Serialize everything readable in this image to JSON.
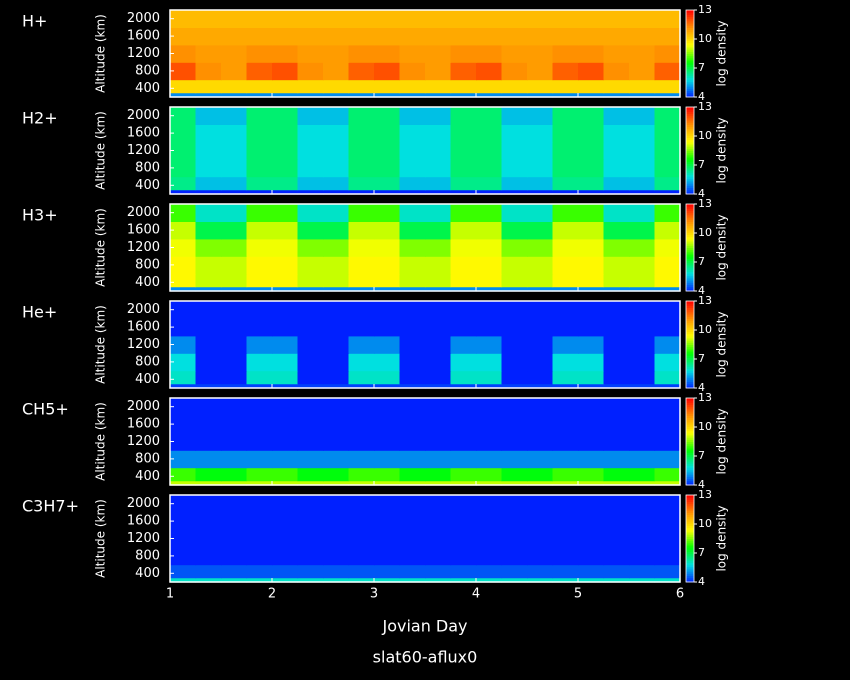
{
  "chart_data": {
    "type": "heatmap",
    "title": "slat60-aflux0",
    "x_label": "Jovian Day",
    "y_label": "Altitude (km)",
    "xlim": [
      1,
      6
    ],
    "xticks": [
      1,
      2,
      3,
      4,
      5,
      6
    ],
    "ylim": [
      200,
      2200
    ],
    "yticks": [
      400,
      800,
      1200,
      1600,
      2000
    ],
    "xbins": [
      1,
      1.25,
      1.5,
      1.75,
      2,
      2.25,
      2.5,
      2.75,
      3,
      3.25,
      3.5,
      3.75,
      4,
      4.25,
      4.5,
      4.75,
      5,
      5.25,
      5.5,
      5.75,
      6
    ],
    "ybins": [
      200,
      300,
      600,
      1000,
      1400,
      1800,
      2200
    ],
    "colorbar": {
      "label": "log density",
      "lim": [
        4,
        13
      ],
      "ticks": [
        4,
        7,
        10,
        13
      ],
      "colors": [
        "#0020ff",
        "#00e0e0",
        "#00ff00",
        "#ffff00",
        "#ff9000",
        "#ff0000"
      ]
    },
    "panels": [
      {
        "name": "H+",
        "z": [
          [
            5,
            5,
            5,
            5,
            5,
            5,
            5,
            5,
            5,
            5,
            5,
            5,
            5,
            5,
            5,
            5,
            5,
            5,
            5,
            5
          ],
          [
            10,
            10,
            10,
            10,
            10,
            10,
            10,
            10,
            10,
            10,
            10,
            10,
            10,
            10,
            10,
            10,
            10,
            10,
            10,
            10
          ],
          [
            12,
            11.2,
            11,
            11.8,
            12,
            11.2,
            11,
            11.8,
            12,
            11.2,
            11,
            11.8,
            12,
            11.2,
            11,
            11.8,
            12,
            11.2,
            11,
            11.8
          ],
          [
            11.2,
            11,
            11,
            11.2,
            11.2,
            11,
            11,
            11.2,
            11.2,
            11,
            11,
            11.2,
            11.2,
            11,
            11,
            11.2,
            11.2,
            11,
            11,
            11.2
          ],
          [
            10.8,
            10.8,
            10.8,
            10.8,
            10.8,
            10.8,
            10.8,
            10.8,
            10.8,
            10.8,
            10.8,
            10.8,
            10.8,
            10.8,
            10.8,
            10.8,
            10.8,
            10.8,
            10.8,
            10.8
          ],
          [
            10.5,
            10.5,
            10.5,
            10.5,
            10.5,
            10.5,
            10.5,
            10.5,
            10.5,
            10.5,
            10.5,
            10.5,
            10.5,
            10.5,
            10.5,
            10.5,
            10.5,
            10.5,
            10.5,
            10.5
          ]
        ]
      },
      {
        "name": "H2+",
        "z": [
          [
            4,
            4,
            4,
            4,
            4,
            4,
            4,
            4,
            4,
            4,
            4,
            4,
            4,
            4,
            4,
            4,
            4,
            4,
            4,
            4
          ],
          [
            6.5,
            5.5,
            5.5,
            6.5,
            6.5,
            5.5,
            5.5,
            6.5,
            6.5,
            5.5,
            5.5,
            6.5,
            6.5,
            5.5,
            5.5,
            6.5,
            6.5,
            5.5,
            5.5,
            6.5
          ],
          [
            6.7,
            5.8,
            5.8,
            6.7,
            6.7,
            5.8,
            5.8,
            6.7,
            6.7,
            5.8,
            5.8,
            6.7,
            6.7,
            5.8,
            5.8,
            6.7,
            6.7,
            5.8,
            5.8,
            6.7
          ],
          [
            6.7,
            5.8,
            5.8,
            6.7,
            6.7,
            5.8,
            5.8,
            6.7,
            6.7,
            5.8,
            5.8,
            6.7,
            6.7,
            5.8,
            5.8,
            6.7,
            6.7,
            5.8,
            5.8,
            6.7
          ],
          [
            6.7,
            5.8,
            5.8,
            6.7,
            6.7,
            5.8,
            5.8,
            6.7,
            6.7,
            5.8,
            5.8,
            6.7,
            6.7,
            5.8,
            5.8,
            6.7,
            6.7,
            5.8,
            5.8,
            6.7
          ],
          [
            6.7,
            5.5,
            5.5,
            6.7,
            6.7,
            5.5,
            5.5,
            6.7,
            6.7,
            5.5,
            5.5,
            6.7,
            6.7,
            5.5,
            5.5,
            6.7,
            6.7,
            5.5,
            5.5,
            6.7
          ]
        ]
      },
      {
        "name": "H3+",
        "z": [
          [
            5,
            5,
            5,
            5,
            5,
            5,
            5,
            5,
            5,
            5,
            5,
            5,
            5,
            5,
            5,
            5,
            5,
            5,
            5,
            5
          ],
          [
            9.5,
            9,
            9,
            9.5,
            9.5,
            9,
            9,
            9.5,
            9.5,
            9,
            9,
            9.5,
            9.5,
            9,
            9,
            9.5,
            9.5,
            9,
            9,
            9.5
          ],
          [
            9.5,
            9,
            9,
            9.5,
            9.5,
            9,
            9,
            9.5,
            9.5,
            9,
            9,
            9.5,
            9.5,
            9,
            9,
            9.5,
            9.5,
            9,
            9,
            9.5
          ],
          [
            9.3,
            8.5,
            8.5,
            9.3,
            9.3,
            8.5,
            8.5,
            9.3,
            9.3,
            8.5,
            8.5,
            9.3,
            9.3,
            8.5,
            8.5,
            9.3,
            9.3,
            8.5,
            8.5,
            9.3
          ],
          [
            9,
            7,
            7,
            9,
            9,
            7,
            7,
            9,
            9,
            7,
            7,
            9,
            9,
            7,
            7,
            9,
            9,
            7,
            7,
            9
          ],
          [
            8,
            6,
            6,
            8,
            8,
            6,
            6,
            8,
            8,
            6,
            6,
            8,
            8,
            6,
            6,
            8,
            8,
            6,
            6,
            8
          ]
        ]
      },
      {
        "name": "He+",
        "z": [
          [
            4.3,
            4.3,
            4.3,
            4.3,
            4.3,
            4.3,
            4.3,
            4.3,
            4.3,
            4.3,
            4.3,
            4.3,
            4.3,
            4.3,
            4.3,
            4.3,
            4.3,
            4.3,
            4.3,
            4.3
          ],
          [
            6,
            4,
            4,
            6,
            6,
            4,
            4,
            6,
            6,
            4,
            4,
            6,
            6,
            4,
            4,
            6,
            6,
            4,
            4,
            6
          ],
          [
            5.8,
            4,
            4,
            5.8,
            5.8,
            4,
            4,
            5.8,
            5.8,
            4,
            4,
            5.8,
            5.8,
            4,
            4,
            5.8,
            5.8,
            4,
            4,
            5.8
          ],
          [
            5,
            4,
            4,
            5,
            5,
            4,
            4,
            5,
            5,
            4,
            4,
            5,
            5,
            4,
            4,
            5,
            5,
            4,
            4,
            5
          ],
          [
            4,
            4,
            4,
            4,
            4,
            4,
            4,
            4,
            4,
            4,
            4,
            4,
            4,
            4,
            4,
            4,
            4,
            4,
            4,
            4
          ],
          [
            4,
            4,
            4,
            4,
            4,
            4,
            4,
            4,
            4,
            4,
            4,
            4,
            4,
            4,
            4,
            4,
            4,
            4,
            4,
            4
          ]
        ]
      },
      {
        "name": "CH5+",
        "z": [
          [
            9,
            9,
            9,
            9,
            9,
            9,
            9,
            9,
            9,
            9,
            9,
            9,
            9,
            9,
            9,
            9,
            9,
            9,
            9,
            9
          ],
          [
            8,
            7.5,
            7.5,
            8,
            8,
            7.5,
            7.5,
            8,
            8,
            7.5,
            7.5,
            8,
            8,
            7.5,
            7.5,
            8,
            8,
            7.5,
            7.5,
            8
          ],
          [
            5,
            5,
            5,
            5,
            5,
            5,
            5,
            5,
            5,
            5,
            5,
            5,
            5,
            5,
            5,
            5,
            5,
            5,
            5,
            5
          ],
          [
            4,
            4,
            4,
            4,
            4,
            4,
            4,
            4,
            4,
            4,
            4,
            4,
            4,
            4,
            4,
            4,
            4,
            4,
            4,
            4
          ],
          [
            4,
            4,
            4,
            4,
            4,
            4,
            4,
            4,
            4,
            4,
            4,
            4,
            4,
            4,
            4,
            4,
            4,
            4,
            4,
            4
          ],
          [
            4,
            4,
            4,
            4,
            4,
            4,
            4,
            4,
            4,
            4,
            4,
            4,
            4,
            4,
            4,
            4,
            4,
            4,
            4,
            4
          ]
        ]
      },
      {
        "name": "C3H7+",
        "z": [
          [
            6,
            6,
            6,
            6,
            6,
            6,
            6,
            6,
            6,
            6,
            6,
            6,
            6,
            6,
            6,
            6,
            6,
            6,
            6,
            6
          ],
          [
            4.5,
            4.5,
            4.5,
            4.5,
            4.5,
            4.5,
            4.5,
            4.5,
            4.5,
            4.5,
            4.5,
            4.5,
            4.5,
            4.5,
            4.5,
            4.5,
            4.5,
            4.5,
            4.5,
            4.5
          ],
          [
            4,
            4,
            4,
            4,
            4,
            4,
            4,
            4,
            4,
            4,
            4,
            4,
            4,
            4,
            4,
            4,
            4,
            4,
            4,
            4
          ],
          [
            4,
            4,
            4,
            4,
            4,
            4,
            4,
            4,
            4,
            4,
            4,
            4,
            4,
            4,
            4,
            4,
            4,
            4,
            4,
            4
          ],
          [
            4,
            4,
            4,
            4,
            4,
            4,
            4,
            4,
            4,
            4,
            4,
            4,
            4,
            4,
            4,
            4,
            4,
            4,
            4,
            4
          ],
          [
            4,
            4,
            4,
            4,
            4,
            4,
            4,
            4,
            4,
            4,
            4,
            4,
            4,
            4,
            4,
            4,
            4,
            4,
            4,
            4
          ]
        ]
      }
    ]
  }
}
